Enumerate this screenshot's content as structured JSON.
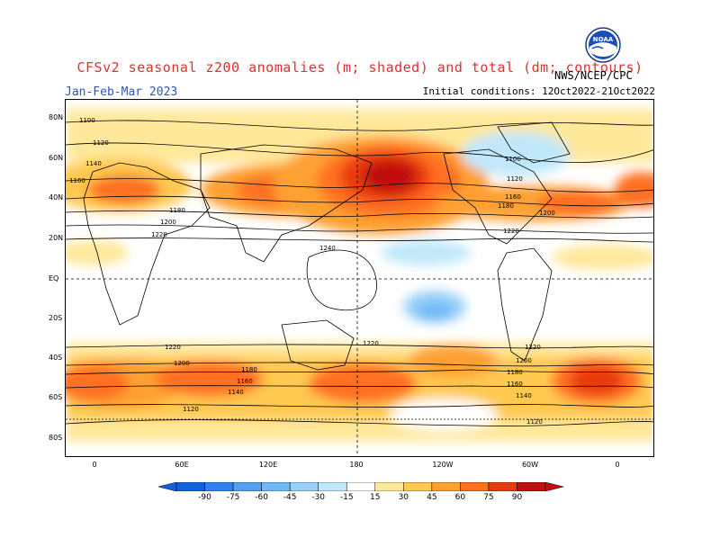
{
  "header": {
    "title": "CFSv2 seasonal z200 anomalies (m; shaded) and total (dm; contours)",
    "season": "Jan-Feb-Mar 2023",
    "initial_conditions": "Initial conditions: 12Oct2022-21Oct2022",
    "agency": "NWS/NCEP/CPC",
    "logo_text": "NOAA"
  },
  "axes": {
    "lat_labels": [
      "80N",
      "60N",
      "40N",
      "20N",
      "EQ",
      "20S",
      "40S",
      "60S",
      "80S"
    ],
    "lon_labels": [
      "0",
      "60E",
      "120E",
      "180",
      "120W",
      "60W",
      "0"
    ]
  },
  "contour_labels": [
    "1100",
    "1120",
    "1140",
    "1160",
    "1180",
    "1200",
    "1220",
    "1240"
  ],
  "colorbar": {
    "labels": [
      "-90",
      "-75",
      "-60",
      "-45",
      "-30",
      "-15",
      "15",
      "30",
      "45",
      "60",
      "75",
      "90"
    ],
    "colors": [
      "#1060e0",
      "#3080f0",
      "#50a0f0",
      "#70b8f5",
      "#98d0f8",
      "#c0e8fa",
      "#ffffff",
      "#ffe89a",
      "#ffc850",
      "#ffa030",
      "#ff7020",
      "#e83a10",
      "#c01010"
    ]
  }
}
